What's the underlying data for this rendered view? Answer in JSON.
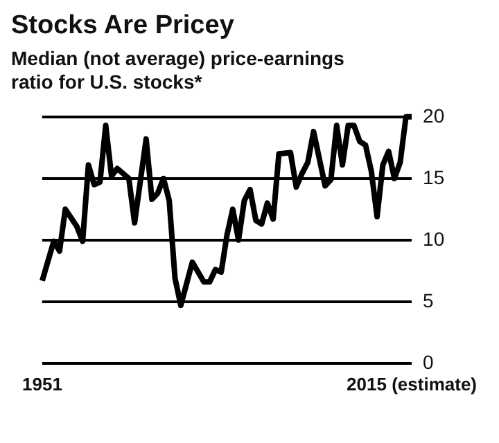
{
  "chart_data": {
    "type": "line",
    "title": "Stocks Are Pricey",
    "subtitle": "Median (not average) price-earnings ratio for U.S. stocks*",
    "x": [
      1951,
      1953,
      1954,
      1955,
      1957,
      1958,
      1959,
      1960,
      1961,
      1962,
      1963,
      1964,
      1966,
      1967,
      1969,
      1970,
      1971,
      1972,
      1973,
      1974,
      1975,
      1977,
      1979,
      1980,
      1981,
      1982,
      1983,
      1984,
      1985,
      1986,
      1987,
      1988,
      1989,
      1990,
      1991,
      1992,
      1994,
      1995,
      1996,
      1997,
      1998,
      2000,
      2001,
      2002,
      2003,
      2004,
      2005,
      2006,
      2007,
      2008,
      2009,
      2010,
      2011,
      2012,
      2013,
      2014,
      2015
    ],
    "series": [
      {
        "color": "#000000",
        "values": [
          6.7,
          9.9,
          9.1,
          12.5,
          11.1,
          9.9,
          16.1,
          14.5,
          14.7,
          19.3,
          15.2,
          15.8,
          15,
          11.4,
          18.2,
          13.3,
          13.8,
          15,
          13.2,
          6.9,
          4.7,
          8.2,
          6.6,
          6.6,
          7.6,
          7.4,
          10.4,
          12.5,
          10,
          13.2,
          14.1,
          11.6,
          11.3,
          13,
          11.7,
          17,
          17.1,
          14.3,
          15.4,
          16.3,
          18.8,
          14.4,
          14.9,
          19.3,
          16.1,
          19.3,
          19.3,
          18,
          17.7,
          15.6,
          11.9,
          16.1,
          17.2,
          15,
          16.3,
          20,
          20
        ]
      }
    ],
    "xlim": [
      1951,
      2015
    ],
    "xticks": [
      {
        "value": 1951,
        "label": "1951"
      },
      {
        "value": 2015,
        "label": "2015 (estimate)"
      }
    ],
    "ylim": [
      0,
      20
    ],
    "yticks": [
      0,
      5,
      10,
      15,
      20
    ],
    "grid": "y",
    "marker": "none"
  }
}
